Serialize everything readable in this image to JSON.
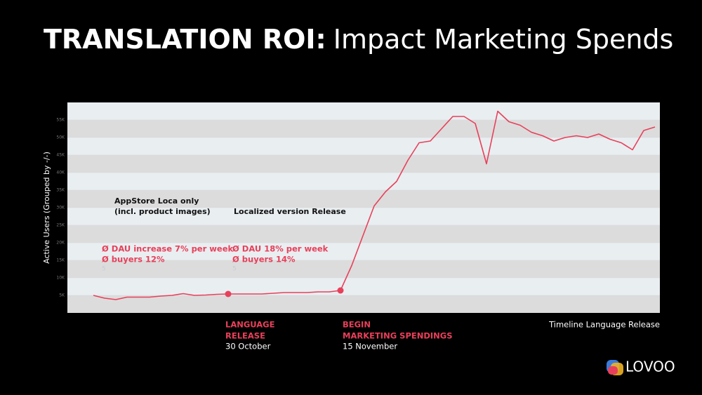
{
  "chart_data": {
    "type": "line",
    "title": "TRANSLATION ROI:",
    "subtitle": "Impact Marketing Spends",
    "y_label": "Active Users (Grouped by -/-)",
    "x_label": "Timeline Language Release",
    "color": "#e8405a",
    "categories": [
      null,
      null,
      null,
      null,
      null,
      null,
      null,
      null,
      null,
      null,
      null,
      null,
      null,
      null,
      null,
      null,
      null,
      null,
      null,
      null,
      null,
      null,
      null,
      null,
      null,
      null,
      null,
      null,
      null,
      null,
      null,
      null,
      null,
      null,
      null,
      null,
      null,
      null,
      null,
      null,
      null,
      null,
      null,
      null,
      null,
      null,
      null,
      null,
      null,
      null,
      null
    ],
    "values": [
      5000,
      4200,
      3800,
      4500,
      4500,
      4500,
      4800,
      5000,
      5500,
      5000,
      5100,
      5300,
      5400,
      5400,
      5400,
      5400,
      5600,
      5800,
      5800,
      5800,
      6000,
      6000,
      6400,
      13500,
      22000,
      30500,
      34500,
      37500,
      43500,
      48500,
      49000,
      52500,
      56000,
      56000,
      54000,
      42500,
      57500,
      54500,
      53500,
      51500,
      50500,
      49000,
      50000,
      50500,
      50000,
      51000,
      49500,
      48500,
      46500,
      52000,
      53000
    ],
    "ylim": [
      0,
      60000
    ],
    "yticks": [
      {
        "value": 5000,
        "label": "5K"
      },
      {
        "value": 10000,
        "label": "10K"
      },
      {
        "value": 15000,
        "label": "15K"
      },
      {
        "value": 20000,
        "label": "20K"
      },
      {
        "value": 25000,
        "label": "25K"
      },
      {
        "value": 30000,
        "label": "30K"
      },
      {
        "value": 35000,
        "label": "35K"
      },
      {
        "value": 40000,
        "label": "40K"
      },
      {
        "value": 45000,
        "label": "45K"
      },
      {
        "value": 50000,
        "label": "50K"
      },
      {
        "value": 55000,
        "label": "55K"
      }
    ],
    "annotations": [
      {
        "lines": [
          "AppStore Loca only",
          "(incl. product images)"
        ]
      },
      {
        "lines": [
          "Localized version Release"
        ]
      },
      {
        "lines": [
          "Ø DAU increase 7% per week",
          "Ø buyers 12%",
          "5"
        ]
      },
      {
        "lines": [
          "Ø DAU 18% per week",
          "Ø buyers 14%",
          "5"
        ]
      },
      {
        "lines": [
          "LANGUAGE",
          "RELEASE",
          "30 October"
        ]
      },
      {
        "lines": [
          "BEGIN",
          "MARKETING SPENDINGS",
          "15 November"
        ]
      }
    ]
  },
  "logo": "LOVOO"
}
